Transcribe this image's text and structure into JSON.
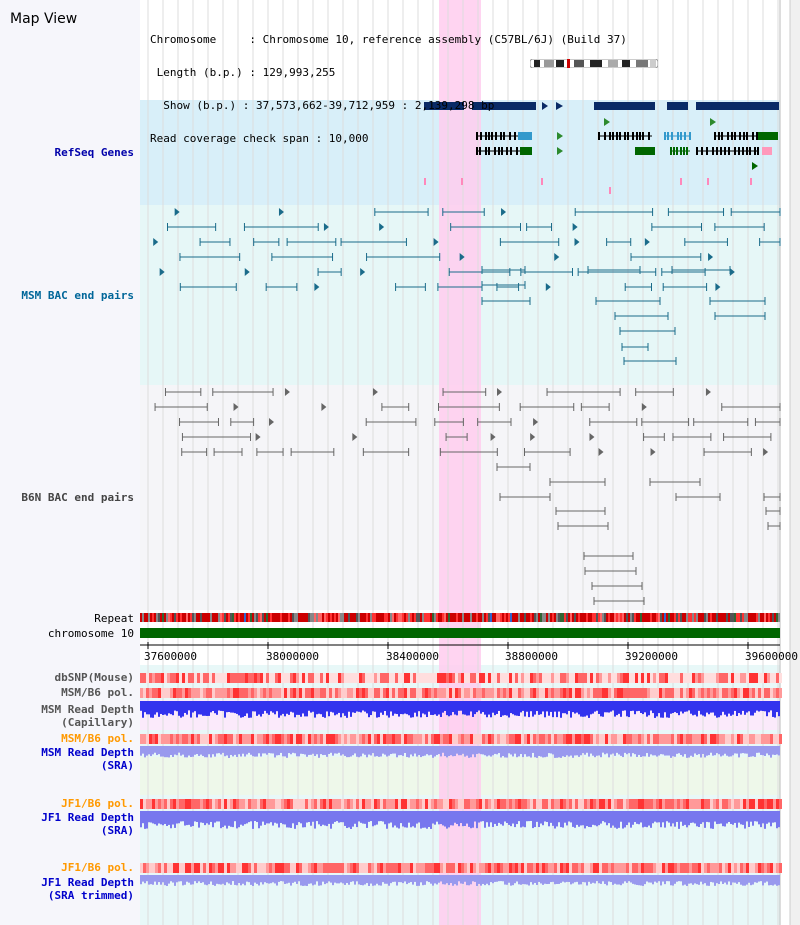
{
  "view": {
    "title": "Map View",
    "info_lines": [
      "Chromosome     : Chromosome 10, reference assembly (C57BL/6J) (Build 37)",
      " Length (b.p.) : 129,993,255",
      "  Show (b.p.) : 37,573,662-39,712,959 : 2,139,298 bp",
      "Read coverage check span : 10,000"
    ]
  },
  "tracks": {
    "refseq": {
      "label": "RefSeq Genes",
      "color": "#0000aa"
    },
    "msm_bac": {
      "label": "MSM BAC end pairs",
      "color": "#006699"
    },
    "b6n_bac": {
      "label": "B6N BAC end pairs",
      "color": "#444444"
    },
    "repeat": {
      "label": "Repeat"
    },
    "chromosome": {
      "label": "chromosome 10",
      "color": "#006600"
    },
    "dbsnp": {
      "label": "dbSNP(Mouse)"
    },
    "msm_b6_pol_1": {
      "label": "MSM/B6 pol."
    },
    "msm_depth_cap": {
      "label": "MSM Read Depth",
      "sub": "(Capillary)"
    },
    "msm_b6_pol_2": {
      "label": "MSM/B6 pol.",
      "color": "#ff9900"
    },
    "msm_depth_sra": {
      "label": "MSM Read Depth",
      "sub": "(SRA)",
      "color": "#0000cc"
    },
    "jf1_b6_pol_1": {
      "label": "JF1/B6 pol.",
      "color": "#ff9900"
    },
    "jf1_depth_sra": {
      "label": "JF1 Read Depth",
      "sub": "(SRA)",
      "color": "#0000cc"
    },
    "jf1_b6_pol_2": {
      "label": "JF1/B6 pol.",
      "color": "#ff9900"
    },
    "jf1_depth_trim": {
      "label": "JF1 Read Depth",
      "sub": "(SRA trimmed)",
      "color": "#0000cc"
    }
  },
  "axis": {
    "ticks": [
      "37600000",
      "38000000",
      "38400000",
      "38800000",
      "39200000",
      "39600000"
    ]
  },
  "highlight": {
    "color": "#ffccee"
  }
}
